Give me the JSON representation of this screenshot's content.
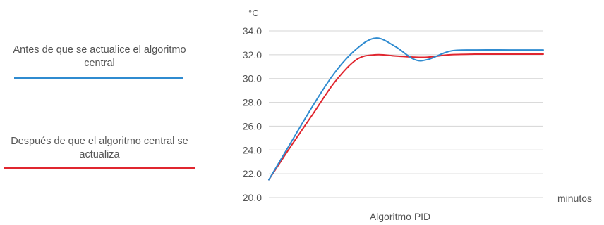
{
  "legend": {
    "before_label": "Antes de que se actualice el algoritmo central",
    "after_label": "Después de que el algoritmo central se actualiza"
  },
  "colors": {
    "before": "#2f8bd0",
    "after": "#e0262f",
    "grid": "#d4d4d4",
    "text": "#555555"
  },
  "chart_data": {
    "type": "line",
    "title": "",
    "xlabel": "Algoritmo PID",
    "xunit": "minutos",
    "ylabel": "°C",
    "ylim": [
      20.0,
      34.0
    ],
    "yticks": [
      "20.0",
      "22.0",
      "24.0",
      "26.0",
      "28.0",
      "30.0",
      "32.0",
      "34.0"
    ],
    "grid": true,
    "legend_position": "left",
    "series": [
      {
        "name": "Antes de que se actualice el algoritmo central",
        "color": "#2f8bd0",
        "values": [
          21.5,
          24.6,
          27.7,
          30.5,
          32.5,
          33.4,
          32.7,
          31.6,
          31.6,
          32.3,
          32.4,
          32.4,
          32.4
        ]
      },
      {
        "name": "Después de que el algoritmo central se actualiza",
        "color": "#e0262f",
        "values": [
          21.5,
          24.3,
          27.0,
          29.7,
          31.6,
          32.0,
          31.9,
          31.8,
          31.8,
          32.0,
          32.05,
          32.05,
          32.05
        ]
      }
    ],
    "x": [
      0.0,
      0.08,
      0.16,
      0.24,
      0.32,
      0.39,
      0.46,
      0.53,
      0.58,
      0.66,
      0.75,
      0.88,
      1.0
    ]
  }
}
